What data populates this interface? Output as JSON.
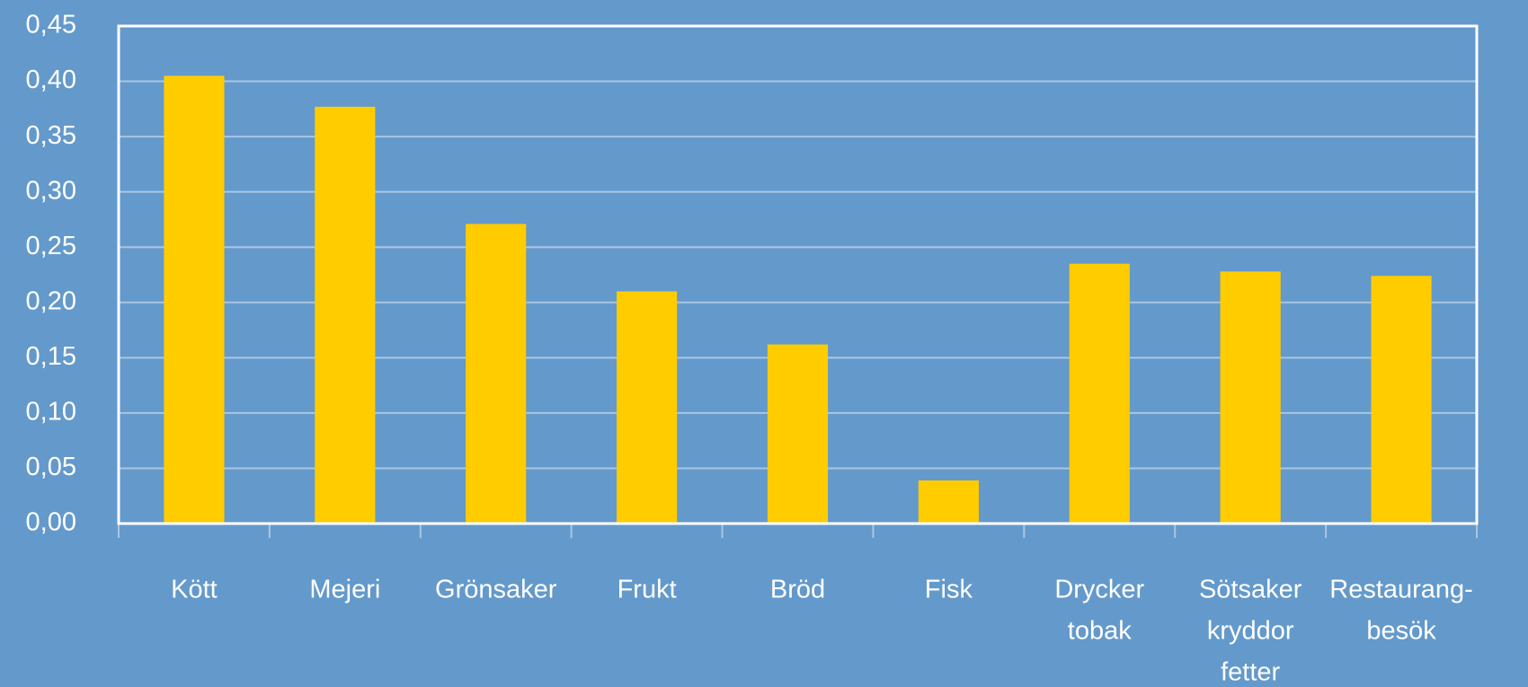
{
  "chart_data": {
    "type": "bar",
    "categories": [
      [
        "Kött"
      ],
      [
        "Mejeri"
      ],
      [
        "Grönsaker"
      ],
      [
        "Frukt"
      ],
      [
        "Bröd"
      ],
      [
        "Fisk"
      ],
      [
        "Drycker",
        "tobak"
      ],
      [
        "Sötsaker",
        "kryddor",
        "fetter"
      ],
      [
        "Restaurang-",
        "besök"
      ]
    ],
    "values": [
      0.405,
      0.377,
      0.271,
      0.21,
      0.162,
      0.039,
      0.235,
      0.228,
      0.224
    ],
    "color": "#ffcc00",
    "ylim": [
      0,
      0.45
    ],
    "yticks": [
      {
        "value": 0,
        "label": "0,00"
      },
      {
        "value": 0.05,
        "label": "0,05"
      },
      {
        "value": 0.1,
        "label": "0,10"
      },
      {
        "value": 0.15,
        "label": "0,15"
      },
      {
        "value": 0.2,
        "label": "0,20"
      },
      {
        "value": 0.25,
        "label": "0,25"
      },
      {
        "value": 0.3,
        "label": "0,30"
      },
      {
        "value": 0.35,
        "label": "0,35"
      },
      {
        "value": 0.4,
        "label": "0,40"
      },
      {
        "value": 0.45,
        "label": "0,45"
      }
    ],
    "grid": true
  }
}
